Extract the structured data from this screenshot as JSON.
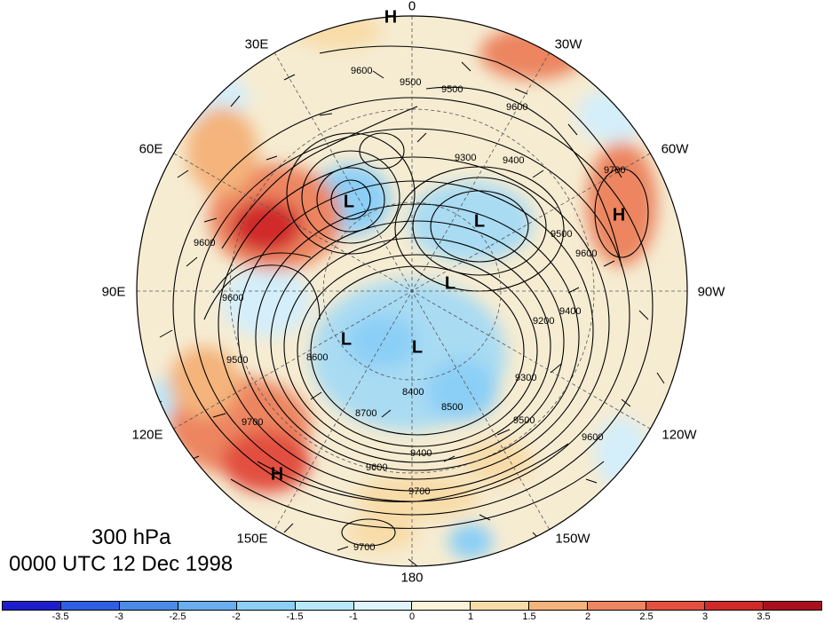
{
  "caption": {
    "level": "300 hPa",
    "time": "0000 UTC 12 Dec 1998"
  },
  "longitude_labels": [
    "0",
    "30W",
    "60W",
    "90W",
    "120W",
    "150W",
    "180",
    "150E",
    "120E",
    "90E",
    "60E",
    "30E"
  ],
  "pressure_centers": {
    "high": "H",
    "low": "L"
  },
  "contour_labels": [
    "9600",
    "9500",
    "9500",
    "9600",
    "9400",
    "9300",
    "9700",
    "9600",
    "9500",
    "9200",
    "9400",
    "9600",
    "9500",
    "9600",
    "8600",
    "8400",
    "8700",
    "8500",
    "9300",
    "9400",
    "9500",
    "9600",
    "9700",
    "9700",
    "9600",
    "9700"
  ],
  "colorbar": {
    "labels": [
      "-3.5",
      "-3",
      "-2.5",
      "-2",
      "-1.5",
      "-1",
      "0",
      "1",
      "1.5",
      "2",
      "2.5",
      "3",
      "3.5"
    ],
    "colors": [
      "#1d1dcc",
      "#2e5fe0",
      "#4a8be8",
      "#68aef0",
      "#8ccff6",
      "#b9e8fb",
      "#def4fb",
      "#fbf3d8",
      "#f8dca8",
      "#f4b47c",
      "#ec8560",
      "#e25040",
      "#d02a2a",
      "#a8101e"
    ]
  }
}
